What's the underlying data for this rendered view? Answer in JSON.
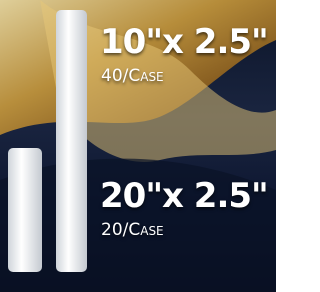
{
  "products": [
    {
      "size": "10\"x 2.5\"",
      "pack": "40/Case"
    },
    {
      "size": "20\"x 2.5\"",
      "pack": "20/Case"
    }
  ]
}
